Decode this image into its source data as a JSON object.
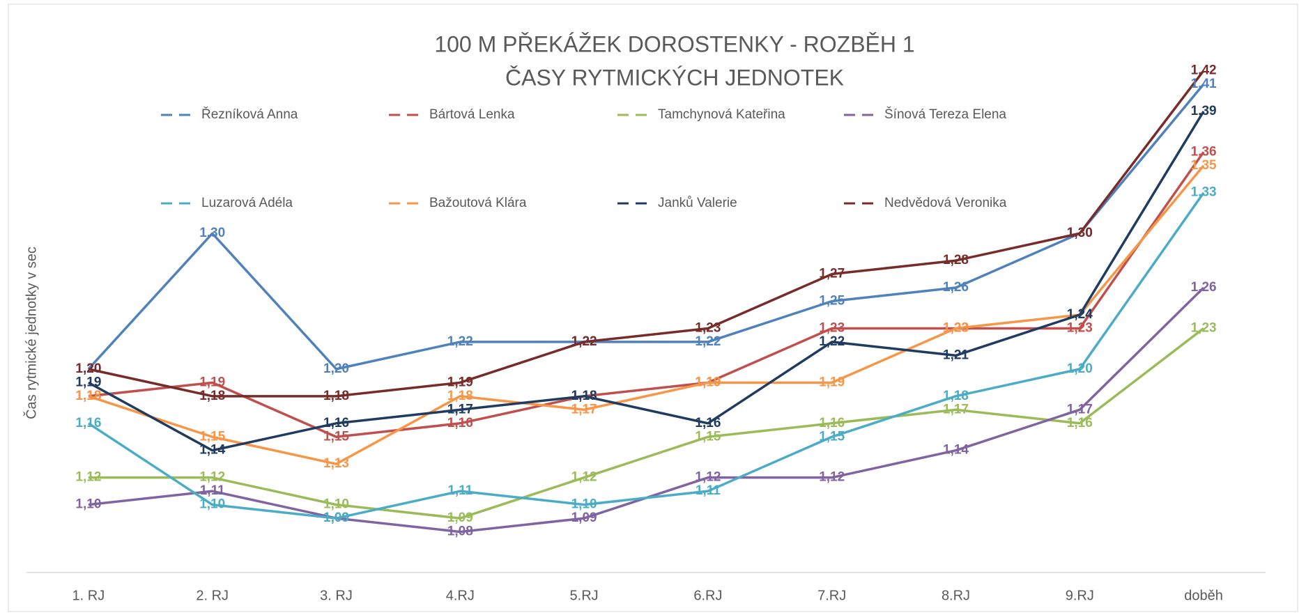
{
  "chart_data": {
    "type": "line",
    "title": "100 M PŘEKÁŽEK DOROSTENKY - ROZBĚH 1",
    "subtitle": "ČASY RYTMICKÝCH JEDNOTEK",
    "y_label": "Čas rytmické jednotky v sec",
    "categories": [
      "1. RJ",
      "2. RJ",
      "3. RJ",
      "4.RJ",
      "5.RJ",
      "6.RJ",
      "7.RJ",
      "8.RJ",
      "9.RJ",
      "doběh"
    ],
    "ylim": [
      1.05,
      1.45
    ],
    "grid": false,
    "legend": "top",
    "series": [
      {
        "name": "Řezníková Anna",
        "color": "#4f81bd",
        "values": [
          1.2,
          1.3,
          1.2,
          1.22,
          1.22,
          1.22,
          1.25,
          1.26,
          1.3,
          1.41
        ],
        "value_labels": [
          "1,20",
          "1,30",
          "1,20",
          "1,22",
          "1,22",
          "1,22",
          "1,25",
          "1,26",
          "1,30",
          "1,41"
        ]
      },
      {
        "name": "Bártová Lenka",
        "color": "#c0504d",
        "values": [
          1.18,
          1.19,
          1.15,
          1.16,
          1.18,
          1.19,
          1.23,
          1.23,
          1.23,
          1.36
        ],
        "value_labels": [
          "1,18",
          "1,19",
          "1,15",
          "1,16",
          "1,18",
          "1,19",
          "1,23",
          "1,23",
          "1,23",
          "1,36"
        ]
      },
      {
        "name": "Tamchynová Kateřina",
        "color": "#9bbb59",
        "values": [
          1.12,
          1.12,
          1.1,
          1.09,
          1.12,
          1.15,
          1.16,
          1.17,
          1.16,
          1.23
        ],
        "value_labels": [
          "1,12",
          "1,12",
          "1,10",
          "1,09",
          "1,12",
          "1,15",
          "1,16",
          "1,17",
          "1,16",
          "1,23"
        ]
      },
      {
        "name": "Šínová Tereza Elena",
        "color": "#8064a2",
        "values": [
          1.1,
          1.11,
          1.09,
          1.08,
          1.09,
          1.12,
          1.12,
          1.14,
          1.17,
          1.26
        ],
        "value_labels": [
          "1,10",
          "1,11",
          "1,09",
          "1,08",
          "1,09",
          "1,12",
          "1,12",
          "1,14",
          "1,17",
          "1,26"
        ]
      },
      {
        "name": "Luzarová Adéla",
        "color": "#4bacc6",
        "values": [
          1.16,
          1.1,
          1.09,
          1.11,
          1.1,
          1.11,
          1.15,
          1.18,
          1.2,
          1.33
        ],
        "value_labels": [
          "1,16",
          "1,10",
          "1,09",
          "1,11",
          "1,10",
          "1,11",
          "1,15",
          "1,18",
          "1,20",
          "1,33"
        ]
      },
      {
        "name": "Bažoutová Klára",
        "color": "#f79646",
        "values": [
          1.18,
          1.15,
          1.13,
          1.18,
          1.17,
          1.19,
          1.19,
          1.23,
          1.24,
          1.35
        ],
        "value_labels": [
          "1,18",
          "1,15",
          "1,13",
          "1,18",
          "1,17",
          "1,19",
          "1,19",
          "1,23",
          "1,24",
          "1,35"
        ]
      },
      {
        "name": "Janků Valerie",
        "color": "#1f3b60",
        "values": [
          1.19,
          1.14,
          1.16,
          1.17,
          1.18,
          1.16,
          1.22,
          1.21,
          1.24,
          1.39
        ],
        "value_labels": [
          "1,19",
          "1,14",
          "1,16",
          "1,17",
          "1,18",
          "1,16",
          "1,22",
          "1,21",
          "1,24",
          "1,39"
        ]
      },
      {
        "name": "Nedvědová Veronika",
        "color": "#772c2a",
        "values": [
          1.2,
          1.18,
          1.18,
          1.19,
          1.22,
          1.23,
          1.27,
          1.28,
          1.3,
          1.42
        ],
        "value_labels": [
          "1,20",
          "1,18",
          "1,18",
          "1,19",
          "1,22",
          "1,23",
          "1,27",
          "1,28",
          "1,30",
          "1,42"
        ]
      }
    ]
  }
}
